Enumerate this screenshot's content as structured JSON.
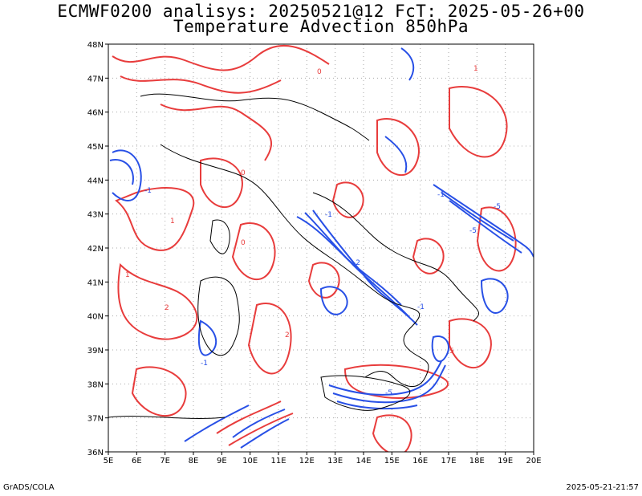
{
  "title_line1": "ECMWF0200 analisys: 20250521@12 FcT: 2025-05-26+00",
  "title_line2": "Temperature Advection 850hPa",
  "footer_left": "GrADS/COLA",
  "footer_right": "2025-05-21-21:57",
  "map": {
    "lat_labels": [
      "48N",
      "47N",
      "46N",
      "45N",
      "44N",
      "43N",
      "42N",
      "41N",
      "40N",
      "39N",
      "38N",
      "37N",
      "36N"
    ],
    "lon_labels": [
      "5E",
      "6E",
      "7E",
      "8E",
      "9E",
      "10E",
      "11E",
      "12E",
      "13E",
      "14E",
      "15E",
      "16E",
      "17E",
      "18E",
      "19E",
      "20E"
    ],
    "colors": {
      "warm_advection": "#e83c3c",
      "cold_advection": "#2850e6",
      "coastline": "#000000",
      "grid": "#aaaaaa"
    },
    "contour_labels": [
      "-1",
      "-2",
      "-5",
      "1",
      "2",
      "5",
      "0"
    ]
  }
}
